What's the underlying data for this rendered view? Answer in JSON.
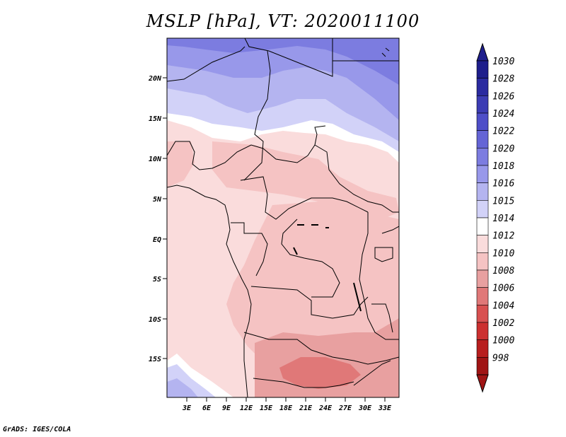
{
  "title": "MSLP [hPa], VT: 2020011100",
  "credit": "GrADS: IGES/COLA",
  "map": {
    "lat_labels": [
      "20N",
      "15N",
      "10N",
      "5N",
      "EQ",
      "5S",
      "10S",
      "15S"
    ],
    "lon_labels": [
      "3E",
      "6E",
      "9E",
      "12E",
      "15E",
      "18E",
      "21E",
      "24E",
      "27E",
      "30E",
      "33E"
    ]
  },
  "colorbar": {
    "labels": [
      "1030",
      "1028",
      "1026",
      "1024",
      "1022",
      "1020",
      "1018",
      "1016",
      "1015",
      "1014",
      "1012",
      "1010",
      "1008",
      "1006",
      "1004",
      "1002",
      "1000",
      "998"
    ],
    "colors": [
      "#1e1e8c",
      "#2a2aa0",
      "#3c3cb4",
      "#4e4ec8",
      "#6464d6",
      "#7c7ce0",
      "#9898ea",
      "#b4b4f0",
      "#d2d2f8",
      "#ffffff",
      "#fadcdc",
      "#f5c3c3",
      "#e8a0a0",
      "#e07878",
      "#d85050",
      "#cc3030",
      "#b81e1e",
      "#a01414"
    ]
  }
}
